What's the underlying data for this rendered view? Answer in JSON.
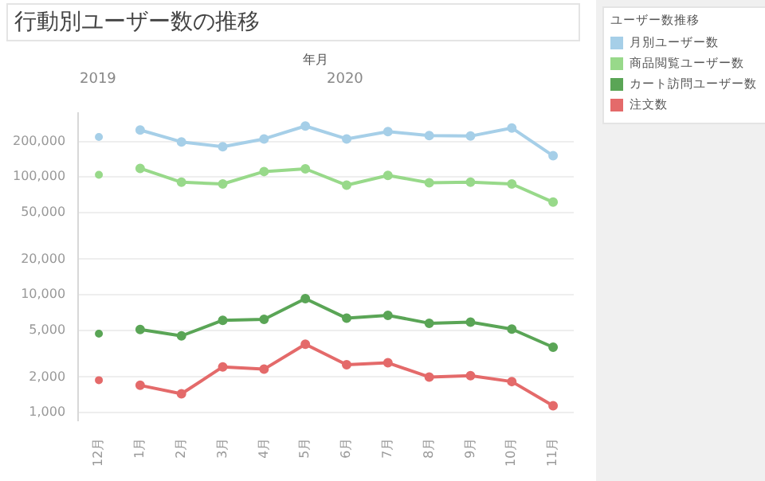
{
  "chart_data": {
    "type": "line",
    "title": "行動別ユーザー数の推移",
    "xlabel": "年月",
    "legend_title": "ユーザー数推移",
    "annotations": [
      "2019",
      "2020"
    ],
    "categories": [
      "12月",
      "1月",
      "2月",
      "3月",
      "4月",
      "5月",
      "6月",
      "7月",
      "8月",
      "9月",
      "10月",
      "11月"
    ],
    "series": [
      {
        "name": "月別ユーザー数",
        "color": "#a6cfe8",
        "values": [
          null,
          250000,
          198000,
          180000,
          210000,
          270000,
          210000,
          242000,
          224000,
          222000,
          260000,
          151000
        ]
      },
      {
        "name": "商品閲覧ユーザー数",
        "color": "#98d98a",
        "values": [
          null,
          118000,
          90000,
          87000,
          111000,
          117000,
          85000,
          103000,
          89000,
          90000,
          87000,
          61000
        ]
      },
      {
        "name": "カート訪問ユーザー数",
        "color": "#5aa556",
        "values": [
          null,
          5060,
          4470,
          6060,
          6180,
          9250,
          6310,
          6680,
          5720,
          5840,
          5100,
          3580
        ]
      },
      {
        "name": "注文数",
        "color": "#e46a6a",
        "values": [
          null,
          1700,
          1440,
          2440,
          2330,
          3800,
          2540,
          2640,
          2000,
          2050,
          1830,
          1140
        ]
      },
      {
        "type": "scatter",
        "color": "#a6cfe8",
        "x": [
          "12月"
        ],
        "values": [
          218000
        ]
      },
      {
        "type": "scatter",
        "color": "#98d98a",
        "x": [
          "12月"
        ],
        "values": [
          104000
        ]
      },
      {
        "type": "scatter",
        "color": "#5aa556",
        "x": [
          "12月"
        ],
        "values": [
          4670
        ]
      },
      {
        "type": "scatter",
        "color": "#e46a6a",
        "x": [
          "12月"
        ],
        "values": [
          1880
        ]
      }
    ],
    "log": "y",
    "ylim": [
      860,
      350000
    ],
    "yticks": [
      {
        "value": 1000,
        "label": "1,000"
      },
      {
        "value": 2000,
        "label": "2,000"
      },
      {
        "value": 5000,
        "label": "5,000"
      },
      {
        "value": 10000,
        "label": "10,000"
      },
      {
        "value": 20000,
        "label": "20,000"
      },
      {
        "value": 50000,
        "label": "50,000"
      },
      {
        "value": 100000,
        "label": "100,000"
      },
      {
        "value": 200000,
        "label": "200,000"
      }
    ],
    "grid": "y",
    "legend": "right",
    "marker": "circle",
    "line_style": "solid"
  }
}
